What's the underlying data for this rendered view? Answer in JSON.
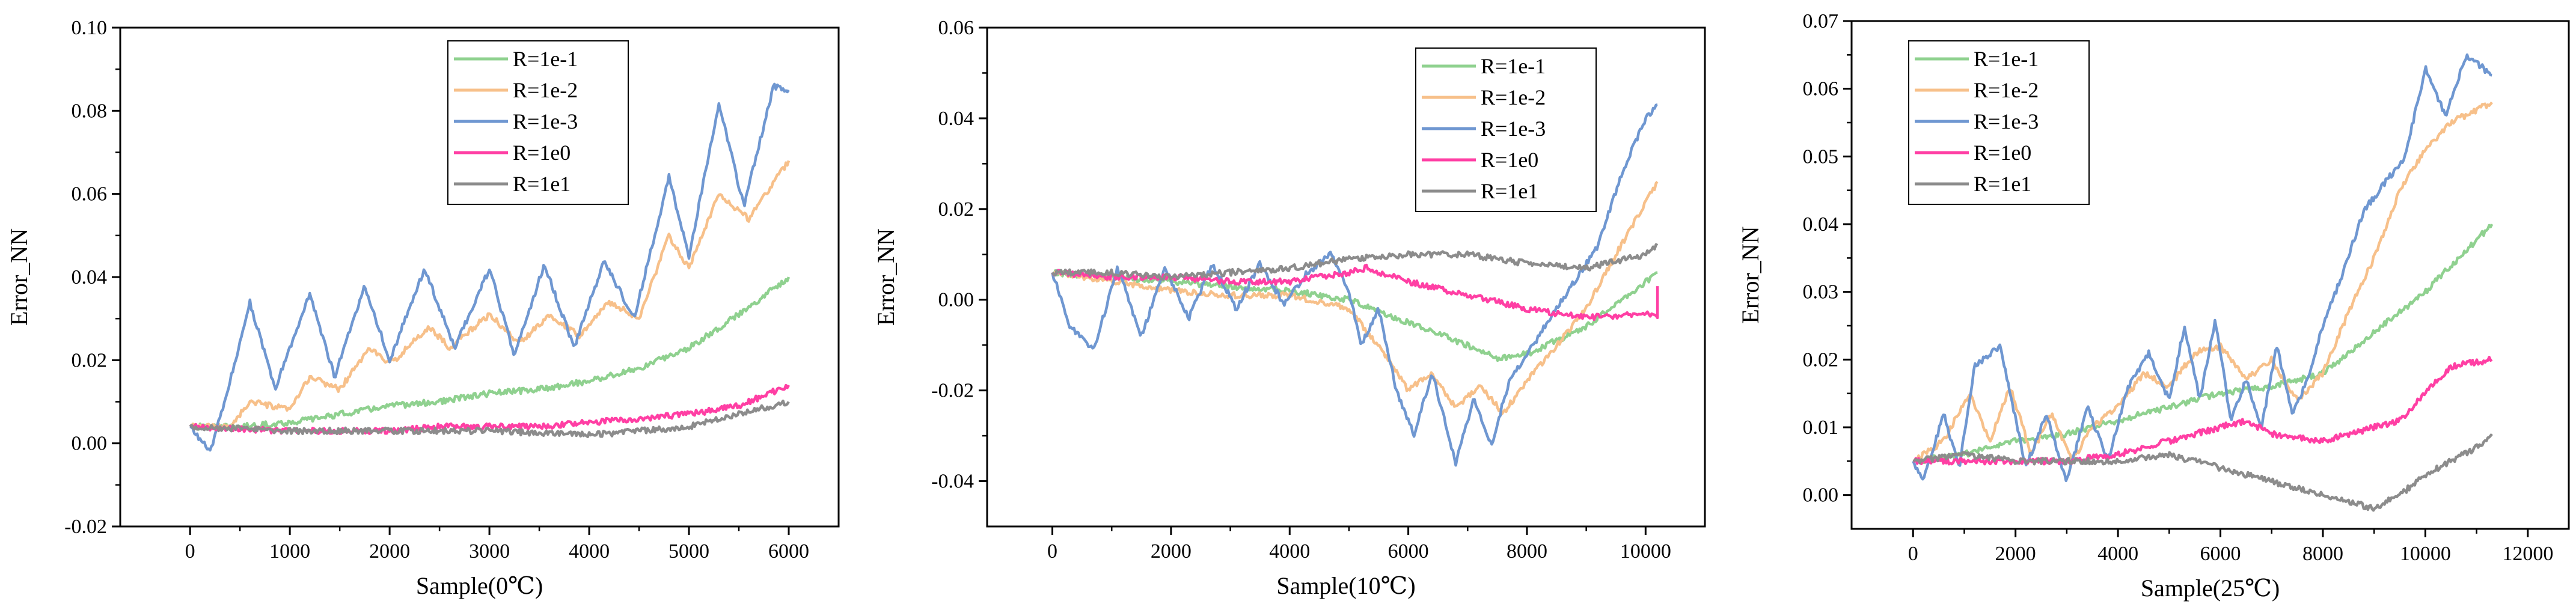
{
  "chart_data": [
    {
      "type": "line",
      "title": "",
      "xlabel": "Sample(0℃)",
      "ylabel": "Error_NN",
      "xlim": [
        -700,
        6500
      ],
      "ylim": [
        -0.02,
        0.1
      ],
      "xticks": [
        0,
        1000,
        2000,
        3000,
        4000,
        5000,
        6000
      ],
      "xtick_labels": [
        "0",
        "1000",
        "2000",
        "3000",
        "4000",
        "5000",
        "6000"
      ],
      "yticks": [
        -0.02,
        0.0,
        0.02,
        0.04,
        0.06,
        0.08,
        0.1
      ],
      "ytick_labels": [
        "-0.02",
        "0.00",
        "0.02",
        "0.04",
        "0.06",
        "0.08",
        "0.10"
      ],
      "legend_position": "top-center",
      "series": [
        {
          "name": "R=1e-1",
          "color": "#8fd18f",
          "x": [
            0,
            500,
            1000,
            1500,
            2000,
            2500,
            3000,
            3500,
            4000,
            4500,
            5000,
            5500,
            6000
          ],
          "y": [
            0.004,
            0.004,
            0.005,
            0.007,
            0.009,
            0.01,
            0.012,
            0.013,
            0.015,
            0.018,
            0.023,
            0.031,
            0.04
          ]
        },
        {
          "name": "R=1e-2",
          "color": "#f7c08a",
          "x": [
            0,
            400,
            600,
            1000,
            1200,
            1500,
            1800,
            2000,
            2400,
            2600,
            3000,
            3300,
            3600,
            3900,
            4200,
            4500,
            4800,
            5000,
            5300,
            5600,
            6000
          ],
          "y": [
            0.004,
            0.004,
            0.01,
            0.008,
            0.016,
            0.013,
            0.023,
            0.019,
            0.028,
            0.023,
            0.031,
            0.024,
            0.031,
            0.026,
            0.034,
            0.03,
            0.05,
            0.042,
            0.06,
            0.054,
            0.068
          ]
        },
        {
          "name": "R=1e-3",
          "color": "#6f97d1",
          "x": [
            0,
            200,
            350,
            600,
            850,
            1200,
            1450,
            1750,
            2000,
            2350,
            2650,
            3000,
            3250,
            3550,
            3850,
            4150,
            4450,
            4800,
            5000,
            5300,
            5550,
            5850,
            6000
          ],
          "y": [
            0.004,
            -0.002,
            0.01,
            0.034,
            0.013,
            0.036,
            0.016,
            0.038,
            0.02,
            0.042,
            0.023,
            0.042,
            0.021,
            0.043,
            0.023,
            0.044,
            0.03,
            0.064,
            0.045,
            0.082,
            0.057,
            0.086,
            0.085
          ]
        },
        {
          "name": "R=1e0",
          "color": "#ff3fa4",
          "x": [
            0,
            1000,
            2000,
            2500,
            3000,
            3500,
            4000,
            4500,
            5000,
            5500,
            6000
          ],
          "y": [
            0.004,
            0.003,
            0.003,
            0.004,
            0.004,
            0.004,
            0.005,
            0.006,
            0.007,
            0.009,
            0.014
          ]
        },
        {
          "name": "R=1e1",
          "color": "#8c8c8c",
          "x": [
            0,
            1000,
            2000,
            3000,
            4000,
            4500,
            5000,
            5500,
            6000
          ],
          "y": [
            0.004,
            0.003,
            0.003,
            0.003,
            0.002,
            0.003,
            0.004,
            0.007,
            0.01
          ]
        }
      ]
    },
    {
      "type": "line",
      "title": "",
      "xlabel": "Sample(10℃)",
      "ylabel": "Error_NN",
      "xlim": [
        -1100,
        11000
      ],
      "ylim": [
        -0.05,
        0.06
      ],
      "xticks": [
        0,
        2000,
        4000,
        6000,
        8000,
        10000
      ],
      "xtick_labels": [
        "0",
        "2000",
        "4000",
        "6000",
        "8000",
        "10000"
      ],
      "yticks": [
        -0.04,
        -0.02,
        0.0,
        0.02,
        0.04,
        0.06
      ],
      "ytick_labels": [
        "-0.04",
        "-0.02",
        "0.00",
        "0.02",
        "0.04",
        "0.06"
      ],
      "legend_position": "top-right",
      "series": [
        {
          "name": "R=1e-1",
          "color": "#8fd18f",
          "x": [
            0,
            1000,
            2000,
            3000,
            4000,
            5000,
            6000,
            7000,
            7500,
            8000,
            9000,
            10200
          ],
          "y": [
            0.006,
            0.005,
            0.004,
            0.003,
            0.002,
            0.0,
            -0.005,
            -0.01,
            -0.013,
            -0.012,
            -0.006,
            0.006
          ]
        },
        {
          "name": "R=1e-2",
          "color": "#f7c08a",
          "x": [
            0,
            1000,
            2000,
            3000,
            4000,
            5000,
            5600,
            6000,
            6400,
            6800,
            7200,
            7600,
            8000,
            8500,
            9000,
            9500,
            10200
          ],
          "y": [
            0.006,
            0.004,
            0.002,
            0.001,
            0.001,
            -0.002,
            -0.012,
            -0.02,
            -0.016,
            -0.024,
            -0.019,
            -0.025,
            -0.018,
            -0.01,
            -0.002,
            0.01,
            0.026
          ]
        },
        {
          "name": "R=1e-3",
          "color": "#6f97d1",
          "x": [
            0,
            300,
            700,
            1100,
            1500,
            1900,
            2300,
            2700,
            3100,
            3500,
            3900,
            4300,
            4700,
            5000,
            5200,
            5500,
            5800,
            6100,
            6400,
            6800,
            7100,
            7400,
            7700,
            8000,
            8400,
            8800,
            9200,
            9600,
            10000,
            10200
          ],
          "y": [
            0.006,
            -0.006,
            -0.011,
            0.007,
            -0.008,
            0.007,
            -0.004,
            0.008,
            -0.002,
            0.008,
            -0.001,
            0.006,
            0.01,
            0.002,
            -0.01,
            -0.002,
            -0.02,
            -0.03,
            -0.016,
            -0.036,
            -0.022,
            -0.032,
            -0.018,
            -0.012,
            -0.004,
            0.004,
            0.012,
            0.028,
            0.04,
            0.043
          ]
        },
        {
          "name": "R=1e0",
          "color": "#ff3fa4",
          "x": [
            0,
            1000,
            2000,
            3000,
            4000,
            5000,
            5300,
            6000,
            7000,
            8000,
            9000,
            10000,
            10200,
            10200
          ],
          "y": [
            0.006,
            0.005,
            0.005,
            0.004,
            0.004,
            0.006,
            0.007,
            0.004,
            0.001,
            -0.002,
            -0.004,
            -0.003,
            -0.004,
            0.003
          ]
        },
        {
          "name": "R=1e1",
          "color": "#8c8c8c",
          "x": [
            0,
            1000,
            2000,
            3000,
            4000,
            5000,
            6000,
            7000,
            8000,
            9000,
            10000,
            10200
          ],
          "y": [
            0.006,
            0.006,
            0.005,
            0.006,
            0.007,
            0.009,
            0.01,
            0.01,
            0.008,
            0.007,
            0.01,
            0.012
          ]
        }
      ]
    },
    {
      "type": "line",
      "title": "",
      "xlabel": "Sample(25℃)",
      "ylabel": "Error_NN",
      "xlim": [
        -1200,
        12800
      ],
      "ylim": [
        -0.005,
        0.07
      ],
      "xticks": [
        0,
        2000,
        4000,
        6000,
        8000,
        10000,
        12000
      ],
      "xtick_labels": [
        "0",
        "2000",
        "4000",
        "6000",
        "8000",
        "10000",
        "12000"
      ],
      "yticks": [
        0.0,
        0.01,
        0.02,
        0.03,
        0.04,
        0.05,
        0.06,
        0.07
      ],
      "ytick_labels": [
        "0.00",
        "0.01",
        "0.02",
        "0.03",
        "0.04",
        "0.05",
        "0.06",
        "0.07"
      ],
      "legend_position": "top-left",
      "series": [
        {
          "name": "R=1e-1",
          "color": "#8fd18f",
          "x": [
            0,
            1000,
            2000,
            3000,
            4000,
            5000,
            6000,
            7000,
            8000,
            9000,
            10000,
            11300
          ],
          "y": [
            0.005,
            0.006,
            0.008,
            0.009,
            0.011,
            0.013,
            0.015,
            0.016,
            0.018,
            0.024,
            0.03,
            0.04
          ]
        },
        {
          "name": "R=1e-2",
          "color": "#f7c08a",
          "x": [
            0,
            600,
            1100,
            1500,
            1900,
            2300,
            2700,
            3100,
            3500,
            4000,
            4500,
            5000,
            5500,
            6000,
            6500,
            7000,
            7500,
            8000,
            8500,
            9000,
            9500,
            10000,
            10500,
            11300
          ],
          "y": [
            0.005,
            0.008,
            0.015,
            0.008,
            0.016,
            0.006,
            0.012,
            0.005,
            0.01,
            0.013,
            0.018,
            0.016,
            0.021,
            0.022,
            0.017,
            0.02,
            0.014,
            0.018,
            0.027,
            0.035,
            0.045,
            0.051,
            0.055,
            0.058
          ]
        },
        {
          "name": "R=1e-3",
          "color": "#6f97d1",
          "x": [
            0,
            200,
            600,
            900,
            1200,
            1700,
            2200,
            2600,
            3000,
            3400,
            3800,
            4200,
            4600,
            5000,
            5300,
            5600,
            5900,
            6200,
            6500,
            6800,
            7100,
            7400,
            7700,
            8000,
            8400,
            8800,
            9200,
            9600,
            10000,
            10400,
            10800,
            11300
          ],
          "y": [
            0.005,
            0.002,
            0.012,
            0.004,
            0.019,
            0.022,
            0.004,
            0.012,
            0.002,
            0.013,
            0.005,
            0.016,
            0.021,
            0.014,
            0.025,
            0.014,
            0.026,
            0.011,
            0.017,
            0.01,
            0.022,
            0.012,
            0.017,
            0.025,
            0.033,
            0.042,
            0.046,
            0.05,
            0.063,
            0.056,
            0.065,
            0.062
          ]
        },
        {
          "name": "R=1e0",
          "color": "#ff3fa4",
          "x": [
            0,
            1000,
            2000,
            3000,
            4000,
            5000,
            6000,
            6500,
            7000,
            8000,
            9000,
            9500,
            10000,
            10500,
            11300
          ],
          "y": [
            0.005,
            0.005,
            0.005,
            0.005,
            0.006,
            0.008,
            0.01,
            0.011,
            0.009,
            0.008,
            0.01,
            0.011,
            0.015,
            0.019,
            0.02
          ]
        },
        {
          "name": "R=1e1",
          "color": "#8c8c8c",
          "x": [
            0,
            1000,
            2000,
            3000,
            4000,
            5000,
            6000,
            7000,
            8000,
            9000,
            9500,
            10000,
            10500,
            11000,
            11300
          ],
          "y": [
            0.005,
            0.006,
            0.005,
            0.005,
            0.005,
            0.006,
            0.004,
            0.002,
            0.0,
            -0.002,
            0.0,
            0.003,
            0.005,
            0.007,
            0.009
          ]
        }
      ]
    }
  ]
}
